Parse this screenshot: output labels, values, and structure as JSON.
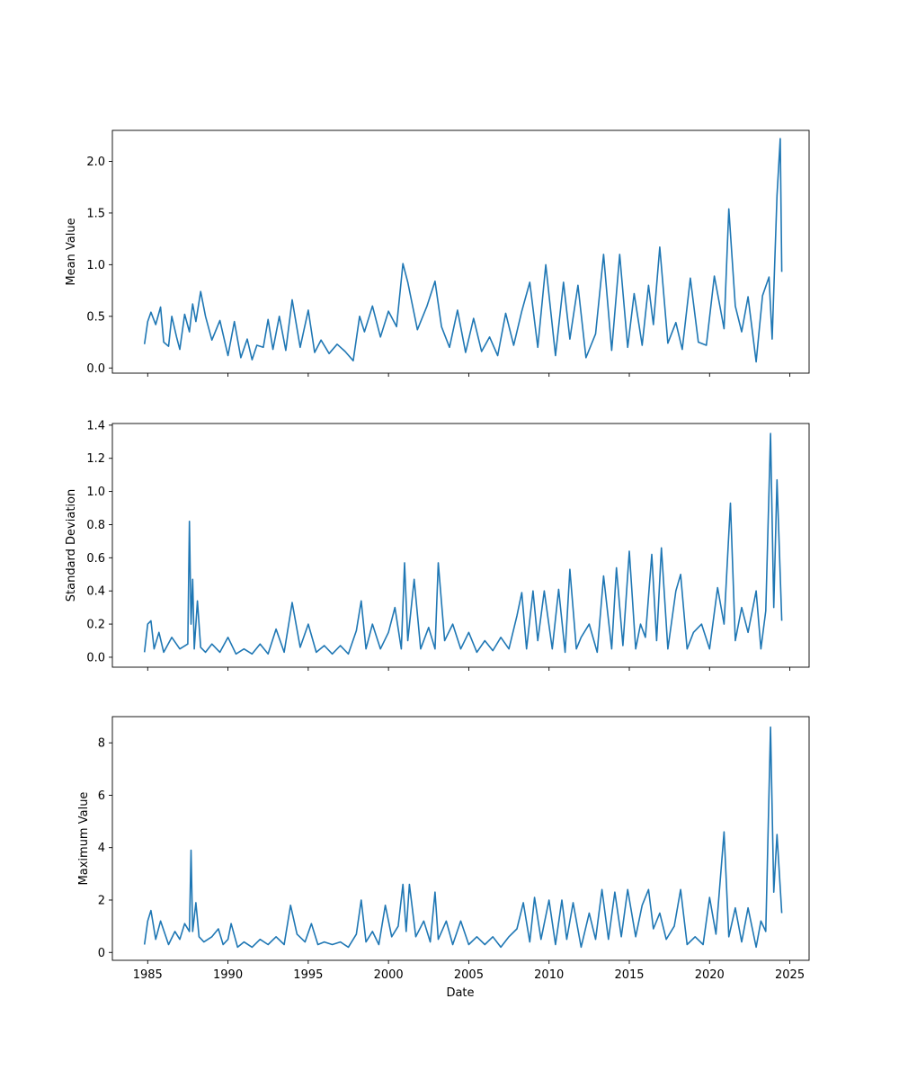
{
  "figure": {
    "xlabel": "Date"
  },
  "colors": {
    "line": "#1f77b4",
    "axes": "#000000",
    "background": "#ffffff"
  },
  "chart_data": [
    {
      "type": "line",
      "title": "",
      "xlabel": "",
      "ylabel": "Mean Value",
      "xlim": [
        1982.8,
        2026.2
      ],
      "ylim": [
        -0.05,
        2.3
      ],
      "xticks": [
        1985,
        1990,
        1995,
        2000,
        2005,
        2010,
        2015,
        2020,
        2025
      ],
      "xtick_labels_visible": false,
      "yticks": [
        0.0,
        0.5,
        1.0,
        1.5,
        2.0
      ],
      "ytick_labels": [
        "0.0",
        "0.5",
        "1.0",
        "1.5",
        "2.0"
      ],
      "grid": false,
      "x": [
        1984.8,
        1985.0,
        1985.2,
        1985.5,
        1985.8,
        1986.0,
        1986.3,
        1986.5,
        1986.8,
        1987.0,
        1987.3,
        1987.6,
        1987.8,
        1988.0,
        1988.3,
        1988.6,
        1989.0,
        1989.5,
        1990.0,
        1990.4,
        1990.8,
        1991.2,
        1991.5,
        1991.8,
        1992.2,
        1992.5,
        1992.8,
        1993.2,
        1993.6,
        1994.0,
        1994.5,
        1995.0,
        1995.4,
        1995.8,
        1996.3,
        1996.8,
        1997.3,
        1997.8,
        1998.2,
        1998.5,
        1999.0,
        1999.5,
        2000.0,
        2000.5,
        2000.9,
        2001.2,
        2001.8,
        2002.4,
        2002.9,
        2003.3,
        2003.8,
        2004.3,
        2004.8,
        2005.3,
        2005.8,
        2006.3,
        2006.8,
        2007.3,
        2007.8,
        2008.3,
        2008.8,
        2009.3,
        2009.8,
        2010.4,
        2010.9,
        2011.3,
        2011.8,
        2012.3,
        2012.9,
        2013.4,
        2013.9,
        2014.4,
        2014.9,
        2015.3,
        2015.8,
        2016.2,
        2016.5,
        2016.9,
        2017.4,
        2017.9,
        2018.3,
        2018.8,
        2019.3,
        2019.8,
        2020.3,
        2020.9,
        2021.2,
        2021.6,
        2022.0,
        2022.4,
        2022.9,
        2023.3,
        2023.7,
        2023.9,
        2024.2,
        2024.4,
        2024.5
      ],
      "y": [
        0.23,
        0.45,
        0.54,
        0.42,
        0.59,
        0.25,
        0.21,
        0.5,
        0.3,
        0.18,
        0.52,
        0.35,
        0.62,
        0.45,
        0.74,
        0.5,
        0.27,
        0.46,
        0.12,
        0.45,
        0.1,
        0.28,
        0.08,
        0.22,
        0.2,
        0.47,
        0.18,
        0.5,
        0.17,
        0.66,
        0.2,
        0.56,
        0.15,
        0.27,
        0.14,
        0.23,
        0.16,
        0.07,
        0.5,
        0.35,
        0.6,
        0.3,
        0.55,
        0.4,
        1.01,
        0.83,
        0.37,
        0.6,
        0.84,
        0.4,
        0.2,
        0.56,
        0.15,
        0.48,
        0.16,
        0.3,
        0.12,
        0.53,
        0.22,
        0.55,
        0.83,
        0.2,
        1.0,
        0.12,
        0.83,
        0.28,
        0.8,
        0.1,
        0.33,
        1.1,
        0.17,
        1.1,
        0.2,
        0.72,
        0.22,
        0.8,
        0.42,
        1.17,
        0.24,
        0.44,
        0.18,
        0.87,
        0.25,
        0.22,
        0.89,
        0.38,
        1.54,
        0.6,
        0.35,
        0.69,
        0.06,
        0.7,
        0.88,
        0.28,
        1.67,
        2.22,
        0.93
      ]
    },
    {
      "type": "line",
      "title": "",
      "xlabel": "",
      "ylabel": "Standard Deviation",
      "xlim": [
        1982.8,
        2026.2
      ],
      "ylim": [
        -0.06,
        1.41
      ],
      "xticks": [
        1985,
        1990,
        1995,
        2000,
        2005,
        2010,
        2015,
        2020,
        2025
      ],
      "xtick_labels_visible": false,
      "yticks": [
        0.0,
        0.2,
        0.4,
        0.6,
        0.8,
        1.0,
        1.2,
        1.4
      ],
      "ytick_labels": [
        "0.0",
        "0.2",
        "0.4",
        "0.6",
        "0.8",
        "1.0",
        "1.2",
        "1.4"
      ],
      "grid": false,
      "x": [
        1984.8,
        1985.0,
        1985.2,
        1985.4,
        1985.7,
        1986.0,
        1986.5,
        1987.0,
        1987.5,
        1987.6,
        1987.7,
        1987.8,
        1987.9,
        1988.1,
        1988.3,
        1988.6,
        1989.0,
        1989.5,
        1990.0,
        1990.5,
        1991.0,
        1991.5,
        1992.0,
        1992.5,
        1993.0,
        1993.5,
        1994.0,
        1994.5,
        1995.0,
        1995.5,
        1996.0,
        1996.5,
        1997.0,
        1997.5,
        1998.0,
        1998.3,
        1998.6,
        1999.0,
        1999.5,
        2000.0,
        2000.4,
        2000.8,
        2001.0,
        2001.2,
        2001.6,
        2002.0,
        2002.5,
        2002.9,
        2003.1,
        2003.5,
        2004.0,
        2004.5,
        2005.0,
        2005.5,
        2006.0,
        2006.5,
        2007.0,
        2007.5,
        2008.0,
        2008.3,
        2008.6,
        2009.0,
        2009.3,
        2009.7,
        2010.2,
        2010.6,
        2011.0,
        2011.3,
        2011.7,
        2012.0,
        2012.5,
        2013.0,
        2013.4,
        2013.9,
        2014.2,
        2014.6,
        2015.0,
        2015.4,
        2015.7,
        2016.0,
        2016.4,
        2016.7,
        2017.0,
        2017.4,
        2017.9,
        2018.2,
        2018.6,
        2019.0,
        2019.5,
        2020.0,
        2020.5,
        2020.9,
        2021.3,
        2021.6,
        2022.0,
        2022.4,
        2022.9,
        2023.2,
        2023.5,
        2023.8,
        2024.0,
        2024.2,
        2024.5
      ],
      "y": [
        0.03,
        0.2,
        0.22,
        0.05,
        0.15,
        0.03,
        0.12,
        0.05,
        0.08,
        0.82,
        0.2,
        0.47,
        0.05,
        0.34,
        0.06,
        0.03,
        0.08,
        0.03,
        0.12,
        0.02,
        0.05,
        0.02,
        0.08,
        0.02,
        0.17,
        0.03,
        0.33,
        0.06,
        0.2,
        0.03,
        0.07,
        0.02,
        0.07,
        0.02,
        0.16,
        0.34,
        0.05,
        0.2,
        0.05,
        0.15,
        0.3,
        0.05,
        0.57,
        0.1,
        0.47,
        0.05,
        0.18,
        0.05,
        0.57,
        0.1,
        0.2,
        0.05,
        0.15,
        0.03,
        0.1,
        0.04,
        0.12,
        0.05,
        0.25,
        0.39,
        0.05,
        0.4,
        0.1,
        0.4,
        0.05,
        0.41,
        0.03,
        0.53,
        0.05,
        0.12,
        0.2,
        0.03,
        0.49,
        0.05,
        0.54,
        0.07,
        0.64,
        0.05,
        0.2,
        0.12,
        0.62,
        0.1,
        0.66,
        0.05,
        0.4,
        0.5,
        0.05,
        0.15,
        0.2,
        0.05,
        0.42,
        0.2,
        0.93,
        0.1,
        0.3,
        0.15,
        0.4,
        0.05,
        0.28,
        1.35,
        0.3,
        1.07,
        0.22
      ]
    },
    {
      "type": "line",
      "title": "",
      "xlabel": "Date",
      "ylabel": "Maximum Value",
      "xlim": [
        1982.8,
        2026.2
      ],
      "ylim": [
        -0.3,
        9.0
      ],
      "xticks": [
        1985,
        1990,
        1995,
        2000,
        2005,
        2010,
        2015,
        2020,
        2025
      ],
      "xtick_labels": [
        "1985",
        "1990",
        "1995",
        "2000",
        "2005",
        "2010",
        "2015",
        "2020",
        "2025"
      ],
      "xtick_labels_visible": true,
      "yticks": [
        0,
        2,
        4,
        6,
        8
      ],
      "ytick_labels": [
        "0",
        "2",
        "4",
        "6",
        "8"
      ],
      "grid": false,
      "x": [
        1984.8,
        1985.0,
        1985.2,
        1985.5,
        1985.8,
        1986.3,
        1986.7,
        1987.0,
        1987.3,
        1987.6,
        1987.7,
        1987.8,
        1988.0,
        1988.2,
        1988.5,
        1989.0,
        1989.4,
        1989.7,
        1990.0,
        1990.2,
        1990.6,
        1991.0,
        1991.5,
        1992.0,
        1992.5,
        1993.0,
        1993.5,
        1993.9,
        1994.3,
        1994.8,
        1995.2,
        1995.6,
        1996.0,
        1996.5,
        1997.0,
        1997.5,
        1998.0,
        1998.3,
        1998.6,
        1999.0,
        1999.4,
        1999.8,
        2000.2,
        2000.6,
        2000.9,
        2001.1,
        2001.3,
        2001.7,
        2002.2,
        2002.6,
        2002.9,
        2003.1,
        2003.6,
        2004.0,
        2004.5,
        2005.0,
        2005.5,
        2006.0,
        2006.5,
        2007.0,
        2007.5,
        2008.0,
        2008.4,
        2008.8,
        2009.1,
        2009.5,
        2010.0,
        2010.4,
        2010.8,
        2011.1,
        2011.5,
        2012.0,
        2012.5,
        2012.9,
        2013.3,
        2013.7,
        2014.1,
        2014.5,
        2014.9,
        2015.4,
        2015.8,
        2016.2,
        2016.5,
        2016.9,
        2017.3,
        2017.8,
        2018.2,
        2018.6,
        2019.1,
        2019.6,
        2020.0,
        2020.4,
        2020.9,
        2021.2,
        2021.6,
        2022.0,
        2022.4,
        2022.9,
        2023.2,
        2023.5,
        2023.8,
        2024.0,
        2024.2,
        2024.5
      ],
      "y": [
        0.3,
        1.2,
        1.6,
        0.5,
        1.2,
        0.3,
        0.8,
        0.5,
        1.1,
        0.8,
        3.9,
        0.8,
        1.9,
        0.6,
        0.4,
        0.6,
        0.9,
        0.3,
        0.5,
        1.1,
        0.2,
        0.4,
        0.2,
        0.5,
        0.3,
        0.6,
        0.3,
        1.8,
        0.7,
        0.4,
        1.1,
        0.3,
        0.4,
        0.3,
        0.4,
        0.2,
        0.7,
        2.0,
        0.4,
        0.8,
        0.3,
        1.8,
        0.6,
        1.0,
        2.6,
        0.8,
        2.6,
        0.6,
        1.2,
        0.4,
        2.3,
        0.5,
        1.2,
        0.3,
        1.2,
        0.3,
        0.6,
        0.3,
        0.6,
        0.2,
        0.6,
        0.9,
        1.9,
        0.4,
        2.1,
        0.5,
        2.0,
        0.3,
        2.0,
        0.5,
        1.9,
        0.2,
        1.5,
        0.5,
        2.4,
        0.5,
        2.3,
        0.6,
        2.4,
        0.6,
        1.8,
        2.4,
        0.9,
        1.5,
        0.5,
        1.0,
        2.4,
        0.3,
        0.6,
        0.3,
        2.1,
        0.7,
        4.6,
        0.6,
        1.7,
        0.4,
        1.7,
        0.2,
        1.2,
        0.8,
        8.6,
        2.3,
        4.5,
        1.5
      ]
    }
  ]
}
